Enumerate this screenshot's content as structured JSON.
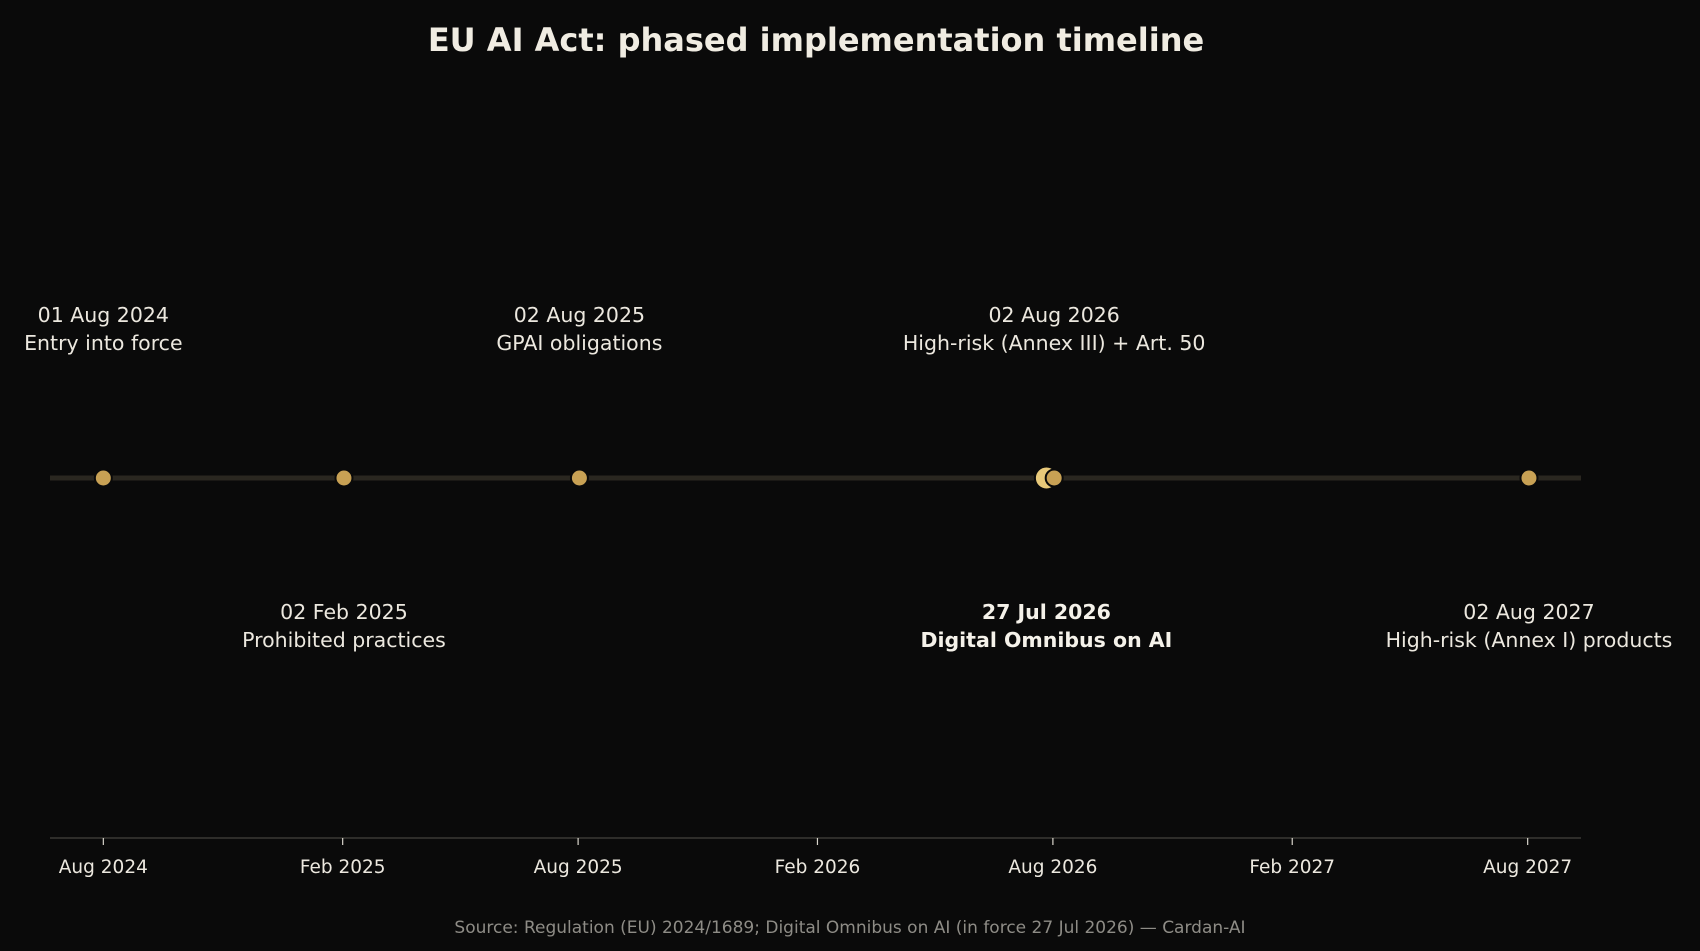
{
  "chart_data": {
    "type": "scatter",
    "title": "EU AI Act: phased implementation timeline",
    "source": "Source: Regulation (EU) 2024/1689; Digital Omnibus on AI (in force 27 Jul 2026) — Cardan-AI",
    "xlabel": "",
    "ylabel": "",
    "xlim": [
      "2024-06-21",
      "2027-09-11"
    ],
    "grid": false,
    "colors": {
      "background": "#0a0a0a",
      "marker": "#c8a154",
      "highlight_marker": "#e8c97a",
      "timeline": "#2a2720",
      "axis": "#3a3935"
    },
    "x_ticks": [
      {
        "date": "2024-08-01",
        "label": "Aug 2024"
      },
      {
        "date": "2025-02-01",
        "label": "Feb 2025"
      },
      {
        "date": "2025-08-01",
        "label": "Aug 2025"
      },
      {
        "date": "2026-02-01",
        "label": "Feb 2026"
      },
      {
        "date": "2026-08-01",
        "label": "Aug 2026"
      },
      {
        "date": "2027-02-01",
        "label": "Feb 2027"
      },
      {
        "date": "2027-08-01",
        "label": "Aug 2027"
      }
    ],
    "events": [
      {
        "date": "2024-08-01",
        "date_label": "01 Aug 2024",
        "label": "Entry into force",
        "side": "above",
        "highlight": false
      },
      {
        "date": "2025-02-02",
        "date_label": "02 Feb 2025",
        "label": "Prohibited practices",
        "side": "below",
        "highlight": false
      },
      {
        "date": "2025-08-02",
        "date_label": "02 Aug 2025",
        "label": "GPAI obligations",
        "side": "above",
        "highlight": false
      },
      {
        "date": "2026-07-27",
        "date_label": "27 Jul 2026",
        "label": "Digital Omnibus on AI",
        "side": "below",
        "highlight": true
      },
      {
        "date": "2026-08-02",
        "date_label": "02 Aug 2026",
        "label": "High-risk (Annex III) + Art. 50",
        "side": "above",
        "highlight": false
      },
      {
        "date": "2027-08-02",
        "date_label": "02 Aug 2027",
        "label": "High-risk (Annex I) products",
        "side": "below",
        "highlight": false
      }
    ]
  }
}
